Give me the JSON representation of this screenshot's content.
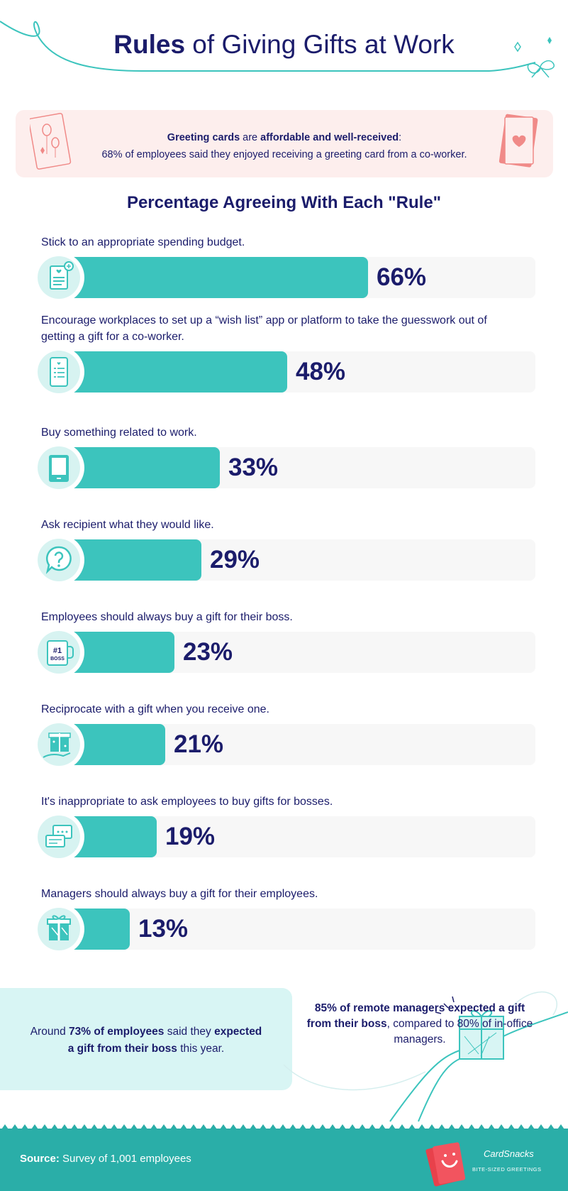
{
  "header": {
    "title_bold": "Rules",
    "title_rest": " of Giving Gifts at Work"
  },
  "callout": {
    "line1_bold_a": "Greeting cards",
    "line1_mid": " are ",
    "line1_bold_b": "affordable and well-received",
    "line1_end": ":",
    "line2": "68% of employees said they enjoyed receiving a greeting card from a co-worker."
  },
  "section_title": "Percentage Agreeing With Each \"Rule\"",
  "chart_data": {
    "type": "bar",
    "orientation": "horizontal",
    "title": "Percentage Agreeing With Each \"Rule\"",
    "categories": [
      "Stick to an appropriate spending budget.",
      "Encourage workplaces to set up a “wish list” app or platform to take the guesswork out of getting a gift for a co-worker.",
      "Buy something related to work.",
      "Ask recipient what they would like.",
      "Employees should always buy a gift for their boss.",
      "Reciprocate with a gift when you receive one.",
      "It's inappropriate to ask employees to buy gifts for bosses.",
      "Managers should always buy a gift for their employees."
    ],
    "values": [
      66,
      48,
      33,
      29,
      23,
      21,
      19,
      13
    ],
    "value_labels": [
      "66%",
      "48%",
      "33%",
      "29%",
      "23%",
      "21%",
      "19%",
      "13%"
    ],
    "icons": [
      "document-icon",
      "wishlist-tablet-icon",
      "tablet-icon",
      "question-bubble-icon",
      "boss-mug-icon",
      "gift-hand-icon",
      "chat-bubbles-icon",
      "gift-box-icon"
    ],
    "xlim": [
      0,
      100
    ],
    "colors": {
      "bar": "#3cc4bd",
      "track": "#f7f7f7",
      "text": "#1b1c6b"
    }
  },
  "stat_left": {
    "pre": "Around ",
    "bold1": "73% of employees",
    "mid": " said they ",
    "bold2": "expected a gift from their boss",
    "post": " this year."
  },
  "stat_right": {
    "bold": "85% of remote managers expected a gift from their boss",
    "rest": ", compared to 80% of in-office managers."
  },
  "footer": {
    "source_label": "Source:",
    "source_text": " Survey of 1,001 employees",
    "logo_name": "CardSnacks",
    "logo_tag": "BITE-SIZED GREETINGS"
  }
}
